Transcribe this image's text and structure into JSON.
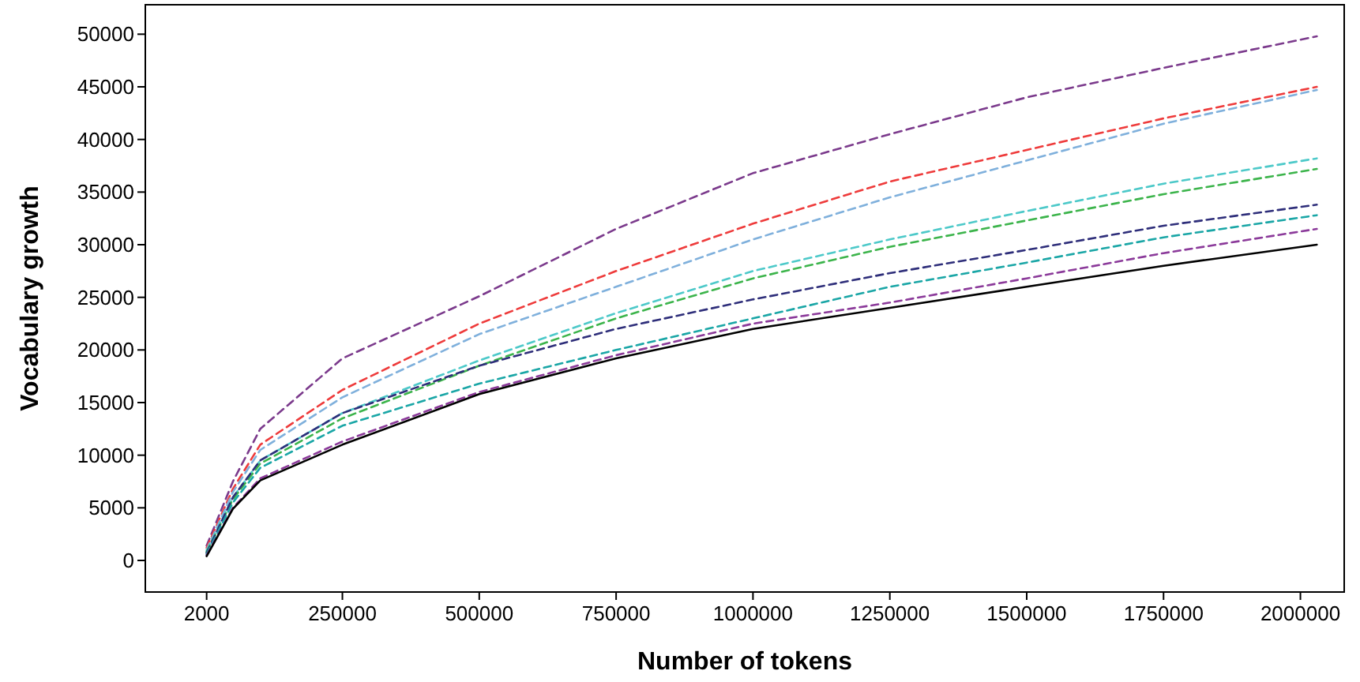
{
  "chart_data": {
    "type": "line",
    "xlabel": "Number of tokens",
    "ylabel": "Vocabulary growth",
    "xlim": [
      -110000,
      2080000
    ],
    "ylim": [
      -3000,
      52800
    ],
    "xticks": [
      2000,
      250000,
      500000,
      750000,
      1000000,
      1250000,
      1500000,
      1750000,
      2000000
    ],
    "yticks": [
      0,
      5000,
      10000,
      15000,
      20000,
      25000,
      30000,
      35000,
      40000,
      45000,
      50000
    ],
    "grid": false,
    "marker": "none",
    "x": [
      2000,
      50000,
      100000,
      250000,
      500000,
      750000,
      1000000,
      1250000,
      1500000,
      1750000,
      2030000
    ],
    "series": [
      {
        "color": "#7b3a8c",
        "line_style": "dashed",
        "values": [
          1400,
          7500,
          12500,
          19200,
          25100,
          31500,
          36800,
          40500,
          44000,
          46800,
          49800
        ]
      },
      {
        "color": "#ee3b3b",
        "line_style": "dashed",
        "values": [
          1200,
          6800,
          11000,
          16200,
          22500,
          27500,
          32000,
          36000,
          39000,
          42000,
          45000
        ]
      },
      {
        "color": "#7fb0dc",
        "line_style": "dashed",
        "values": [
          1000,
          6500,
          10500,
          15500,
          21500,
          26000,
          30500,
          34500,
          38000,
          41500,
          44700
        ]
      },
      {
        "color": "#4dc9c9",
        "line_style": "dashed",
        "values": [
          900,
          6000,
          9500,
          14000,
          19000,
          23500,
          27500,
          30500,
          33200,
          35800,
          38200
        ]
      },
      {
        "color": "#3cb44b",
        "line_style": "dashed",
        "values": [
          800,
          5800,
          9200,
          13500,
          18500,
          23000,
          26800,
          29800,
          32300,
          34800,
          37200
        ]
      },
      {
        "color": "#2e2e7a",
        "line_style": "dashed",
        "values": [
          700,
          6000,
          9500,
          14000,
          18500,
          22000,
          24800,
          27300,
          29500,
          31800,
          33800
        ]
      },
      {
        "color": "#1aa6a6",
        "line_style": "dashed",
        "values": [
          600,
          5500,
          8800,
          12800,
          16800,
          20000,
          23000,
          26000,
          28300,
          30700,
          32800
        ]
      },
      {
        "color": "#8b3a9a",
        "line_style": "dashed",
        "values": [
          500,
          5000,
          7800,
          11300,
          16000,
          19500,
          22500,
          24500,
          26800,
          29200,
          31500
        ]
      },
      {
        "color": "#000000",
        "line_style": "solid",
        "values": [
          400,
          4900,
          7600,
          11000,
          15800,
          19200,
          22000,
          24000,
          26000,
          28000,
          30000
        ]
      }
    ]
  }
}
